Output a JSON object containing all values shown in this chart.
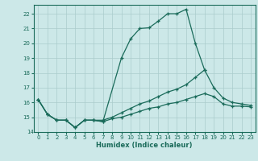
{
  "xlabel": "Humidex (Indice chaleur)",
  "bg_color": "#cce8e8",
  "grid_color": "#aacccc",
  "line_color": "#1a6b5a",
  "xlim": [
    -0.5,
    23.5
  ],
  "ylim": [
    14.0,
    22.6
  ],
  "yticks": [
    15,
    16,
    17,
    18,
    19,
    20,
    21,
    22
  ],
  "ytick_labels": [
    "15",
    "16",
    "17",
    "18",
    "19",
    "20",
    "21",
    "22"
  ],
  "xticks": [
    0,
    1,
    2,
    3,
    4,
    5,
    6,
    7,
    8,
    9,
    10,
    11,
    12,
    13,
    14,
    15,
    16,
    17,
    18,
    19,
    20,
    21,
    22,
    23
  ],
  "series": [
    {
      "x": [
        0,
        1,
        2,
        3,
        4,
        5,
        6,
        7,
        9,
        10,
        11,
        12,
        13,
        14,
        15,
        16,
        17,
        18
      ],
      "y": [
        16.2,
        15.2,
        14.8,
        14.8,
        14.3,
        14.8,
        14.8,
        14.7,
        19.0,
        20.3,
        21.0,
        21.05,
        21.5,
        22.0,
        22.0,
        22.3,
        20.0,
        18.2
      ],
      "marker": true
    },
    {
      "x": [
        0,
        1,
        2,
        3,
        4,
        5,
        6,
        7,
        8,
        9,
        10,
        11,
        12,
        13,
        14,
        15,
        16,
        17,
        18,
        19,
        20,
        21,
        22,
        23
      ],
      "y": [
        16.2,
        15.2,
        14.8,
        14.8,
        14.3,
        14.8,
        14.8,
        14.8,
        15.0,
        15.3,
        15.6,
        15.9,
        16.1,
        16.4,
        16.7,
        16.9,
        17.2,
        17.7,
        18.2,
        17.0,
        16.3,
        16.0,
        15.9,
        15.8
      ],
      "marker": true
    },
    {
      "x": [
        0,
        1,
        2,
        3,
        4,
        5,
        6,
        7,
        8,
        9,
        10,
        11,
        12,
        13,
        14,
        15,
        16,
        17,
        18,
        19,
        20,
        21,
        22,
        23
      ],
      "y": [
        16.2,
        15.2,
        14.8,
        14.8,
        14.3,
        14.8,
        14.8,
        14.7,
        14.9,
        15.0,
        15.2,
        15.4,
        15.6,
        15.7,
        15.9,
        16.0,
        16.2,
        16.4,
        16.6,
        16.4,
        15.9,
        15.75,
        15.75,
        15.7
      ],
      "marker": true
    }
  ]
}
